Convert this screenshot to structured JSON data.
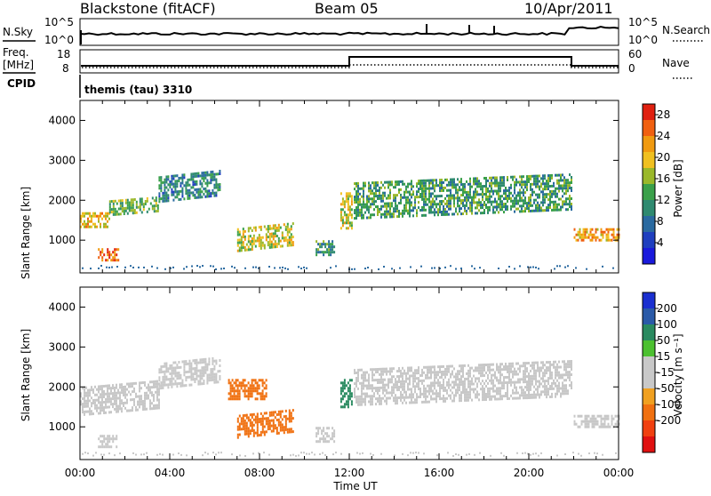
{
  "header": {
    "station": "Blackstone (fitACF)",
    "beam": "Beam 05",
    "date": "10/Apr/2011"
  },
  "status_panel": {
    "left_labels": {
      "nsky": "N.Sky",
      "freq": "Freq.",
      "mhz": "[MHz]",
      "cpid": "CPID"
    },
    "right_labels": {
      "nsearch": "N.Search",
      "nave": "Nave"
    },
    "noise_ticks_left": [
      "10^5",
      "10^0"
    ],
    "noise_ticks_right": [
      "10^5",
      "10^0"
    ],
    "freq_ticks": [
      "18",
      "8"
    ],
    "nave_ticks": [
      "60",
      "0"
    ],
    "cpid_text": "themis (tau) 3310"
  },
  "colors": {
    "power": [
      "#1a1adc",
      "#1f3fbf",
      "#2a6aa0",
      "#2f8a70",
      "#3aa04a",
      "#9ab82a",
      "#f0c020",
      "#f09a10",
      "#f06010",
      "#e02010"
    ],
    "velocity": [
      "#1a2fd0",
      "#2a5aa8",
      "#2a8a60",
      "#4cc030",
      "#c8c8c8",
      "#c8c8c8",
      "#f0a020",
      "#f07010",
      "#f04010",
      "#e01010"
    ]
  },
  "chart_data": [
    {
      "type": "heatmap",
      "panel": "power",
      "x_unit": "Time UT",
      "ylabel": "Slant Range [km]",
      "x_ticks": [
        "00:00",
        "04:00",
        "08:00",
        "12:00",
        "16:00",
        "20:00",
        "00:00"
      ],
      "y_ticks": [
        1000,
        2000,
        3000,
        4000
      ],
      "xlim": [
        0,
        24
      ],
      "ylim": [
        180,
        4500
      ],
      "colorbar_label": "Power [dB]",
      "colorbar_ticks": [
        4,
        8,
        12,
        16,
        20,
        24,
        28
      ],
      "colorbar_range": [
        0,
        30
      ],
      "grid": false,
      "regions": [
        {
          "t0": 0.0,
          "t1": 1.3,
          "r0": 1300,
          "r1": 1700,
          "level": 20
        },
        {
          "t0": 0.8,
          "t1": 1.7,
          "r0": 500,
          "r1": 800,
          "level": 26
        },
        {
          "t0": 1.3,
          "t1": 3.5,
          "r0": 1600,
          "r1": 2000,
          "level": 14
        },
        {
          "t0": 3.5,
          "t1": 6.2,
          "r0": 1950,
          "r1": 2600,
          "level": 10
        },
        {
          "t0": 7.0,
          "t1": 9.5,
          "r0": 700,
          "r1": 1300,
          "level": 18
        },
        {
          "t0": 10.5,
          "t1": 11.3,
          "r0": 600,
          "r1": 1000,
          "level": 12
        },
        {
          "t0": 11.6,
          "t1": 12.1,
          "r0": 1300,
          "r1": 2200,
          "level": 18
        },
        {
          "t0": 12.2,
          "t1": 21.9,
          "r0": 1550,
          "r1": 2450,
          "level": 12
        },
        {
          "t0": 22.0,
          "t1": 24.0,
          "r0": 1000,
          "r1": 1300,
          "level": 22
        }
      ]
    },
    {
      "type": "heatmap",
      "panel": "velocity",
      "x_unit": "Time UT",
      "xlabel": "Time UT",
      "ylabel": "Slant Range [km]",
      "x_ticks": [
        "00:00",
        "04:00",
        "08:00",
        "12:00",
        "16:00",
        "20:00",
        "00:00"
      ],
      "y_ticks": [
        1000,
        2000,
        3000,
        4000
      ],
      "xlim": [
        0,
        24
      ],
      "ylim": [
        180,
        4500
      ],
      "colorbar_label": "Velocity [m s⁻¹]",
      "colorbar_ticks": [
        200,
        100,
        50,
        15,
        -15,
        -50,
        -100,
        -200
      ],
      "grid": false,
      "regions": [
        {
          "t0": 0.0,
          "t1": 3.5,
          "r0": 1300,
          "r1": 2000,
          "level": -5
        },
        {
          "t0": 0.8,
          "t1": 1.7,
          "r0": 500,
          "r1": 800,
          "level": -5
        },
        {
          "t0": 3.5,
          "t1": 6.2,
          "r0": 1950,
          "r1": 2600,
          "level": -5
        },
        {
          "t0": 6.6,
          "t1": 8.3,
          "r0": 1700,
          "r1": 2200,
          "level": -60
        },
        {
          "t0": 7.0,
          "t1": 9.5,
          "r0": 700,
          "r1": 1300,
          "level": -60
        },
        {
          "t0": 10.5,
          "t1": 11.3,
          "r0": 600,
          "r1": 1000,
          "level": -5
        },
        {
          "t0": 11.6,
          "t1": 12.1,
          "r0": 1500,
          "r1": 2200,
          "level": 40
        },
        {
          "t0": 12.2,
          "t1": 21.9,
          "r0": 1550,
          "r1": 2450,
          "level": -5
        },
        {
          "t0": 22.0,
          "t1": 24.0,
          "r0": 1000,
          "r1": 1300,
          "level": -5
        }
      ]
    }
  ]
}
